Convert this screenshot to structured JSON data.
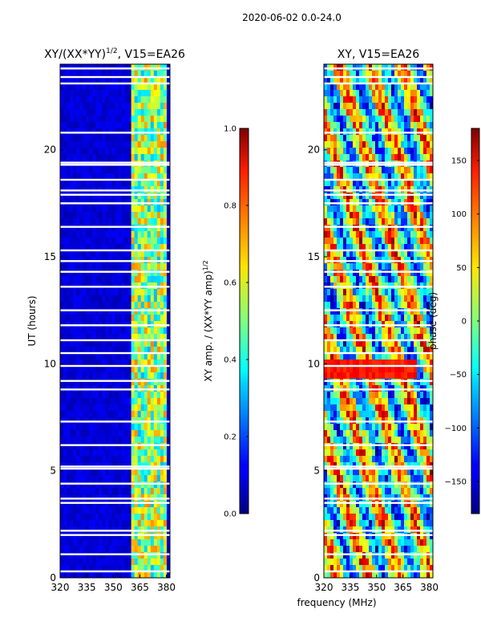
{
  "suptitle": "2020-06-02 0.0-24.0",
  "xlabel_shared": "frequency (MHz)",
  "chart_data": [
    {
      "type": "heatmap",
      "title": "XY/(XX*YY)^1/2, V15=EA26",
      "title_main": "XY/(XX*YY)",
      "title_sup": "1/2",
      "title_rest": ", V15=EA26",
      "xlabel": "",
      "ylabel": "UT (hours)",
      "xlim": [
        320,
        382
      ],
      "ylim": [
        0,
        24
      ],
      "xticks": [
        320,
        335,
        350,
        365,
        380
      ],
      "yticks": [
        0,
        5,
        10,
        15,
        20
      ],
      "colormap": "jet",
      "band_bright_range": [
        360,
        380
      ],
      "colorbar": {
        "label": "XY amp. / (XX*YY amp)^1/2",
        "label_main": "XY amp. / (XX*YY amp)",
        "label_sup": "1/2",
        "range": [
          0.0,
          1.0
        ],
        "ticks": [
          "0.0",
          "0.2",
          "0.4",
          "0.6",
          "0.8",
          "1.0"
        ]
      }
    },
    {
      "type": "heatmap",
      "title": "XY, V15=EA26",
      "xlabel": "frequency (MHz)",
      "ylabel": "",
      "xlim": [
        320,
        382
      ],
      "ylim": [
        0,
        24
      ],
      "xticks": [
        320,
        335,
        350,
        365,
        380
      ],
      "yticks": [
        0,
        5,
        10,
        15,
        20
      ],
      "colormap": "jet",
      "colorbar": {
        "label": "phase (deg)",
        "range": [
          -180,
          180
        ],
        "ticks": [
          "-150",
          "-100",
          "-50",
          "0",
          "50",
          "100",
          "150"
        ]
      }
    }
  ]
}
